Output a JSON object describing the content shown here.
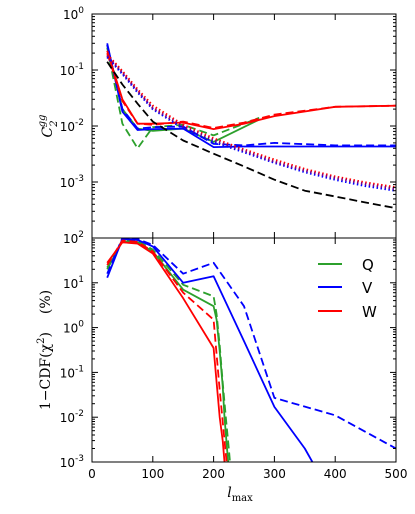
{
  "chart_data": [
    {
      "type": "line",
      "ylabel_main": "C",
      "ylabel_sub": "2",
      "ylabel_sup": "gg",
      "yscale": "log",
      "xlim": [
        0,
        500
      ],
      "ylim": [
        0.0001,
        1
      ],
      "yticks": [
        {
          "value": 1,
          "mant": "10",
          "exp": "0"
        },
        {
          "value": 0.1,
          "mant": "10",
          "exp": "-1"
        },
        {
          "value": 0.01,
          "mant": "10",
          "exp": "-2"
        },
        {
          "value": 0.001,
          "mant": "10",
          "exp": "-3"
        }
      ],
      "series": [
        {
          "key": "q-solid",
          "color": "#2ca02c",
          "dash": "solid",
          "x": [
            25,
            50,
            75,
            100,
            150,
            200,
            275
          ],
          "y": [
            0.28,
            0.02,
            0.009,
            0.0082,
            0.009,
            0.0052,
            0.013
          ]
        },
        {
          "key": "q-dash",
          "color": "#2ca02c",
          "dash": "dashed",
          "x": [
            25,
            50,
            75,
            100,
            150,
            200,
            275
          ],
          "y": [
            0.25,
            0.011,
            0.004,
            0.0095,
            0.0105,
            0.0068,
            0.014
          ]
        },
        {
          "key": "v-solid",
          "color": "#0000ff",
          "dash": "solid",
          "x": [
            25,
            50,
            75,
            100,
            150,
            200,
            250,
            300,
            400,
            500
          ],
          "y": [
            0.3,
            0.018,
            0.0085,
            0.0088,
            0.009,
            0.0042,
            0.0043,
            0.0043,
            0.0043,
            0.0043
          ]
        },
        {
          "key": "v-dash",
          "color": "#0000ff",
          "dash": "dashed",
          "x": [
            25,
            50,
            75,
            100,
            150,
            200,
            250,
            300,
            400,
            500
          ],
          "y": [
            0.28,
            0.02,
            0.009,
            0.0095,
            0.0098,
            0.0048,
            0.0045,
            0.005,
            0.0045,
            0.0045
          ]
        },
        {
          "key": "w-solid",
          "color": "#ff0000",
          "dash": "solid",
          "x": [
            25,
            50,
            75,
            100,
            150,
            200,
            250,
            300,
            400,
            500
          ],
          "y": [
            0.22,
            0.03,
            0.011,
            0.011,
            0.0115,
            0.0088,
            0.011,
            0.015,
            0.022,
            0.023
          ]
        },
        {
          "key": "w-dash",
          "color": "#ff0000",
          "dash": "dashed",
          "x": [
            25,
            50,
            75,
            100,
            150,
            200,
            250,
            300,
            400,
            500
          ],
          "y": [
            0.2,
            0.028,
            0.011,
            0.0105,
            0.012,
            0.0092,
            0.0115,
            0.016,
            0.022,
            0.023
          ]
        },
        {
          "key": "black-dash",
          "color": "#000000",
          "dash": "dashed",
          "x": [
            25,
            50,
            75,
            100,
            150,
            200,
            250,
            300,
            350,
            400,
            450,
            500
          ],
          "y": [
            0.14,
            0.055,
            0.025,
            0.012,
            0.0055,
            0.0032,
            0.0019,
            0.0011,
            0.0007,
            0.00055,
            0.00043,
            0.00034
          ]
        },
        {
          "key": "blue-dot",
          "color": "#0000ff",
          "dash": "dotted",
          "x": [
            25,
            50,
            75,
            100,
            150,
            200,
            250,
            300,
            350,
            400,
            450,
            500
          ],
          "y": [
            0.17,
            0.085,
            0.04,
            0.02,
            0.009,
            0.0052,
            0.0034,
            0.0022,
            0.0015,
            0.0011,
            0.00085,
            0.0007
          ]
        },
        {
          "key": "red-dot",
          "color": "#ff0000",
          "dash": "dotted",
          "x": [
            25,
            50,
            75,
            100,
            150,
            200,
            250,
            300,
            350,
            400,
            450,
            500
          ],
          "y": [
            0.19,
            0.095,
            0.045,
            0.023,
            0.0105,
            0.006,
            0.0038,
            0.0025,
            0.0017,
            0.00125,
            0.00098,
            0.0008
          ]
        },
        {
          "key": "purple-dot",
          "color": "#800080",
          "dash": "dotted",
          "x": [
            25,
            50,
            75,
            100,
            150,
            200,
            250,
            300,
            350,
            400,
            450,
            500
          ],
          "y": [
            0.18,
            0.09,
            0.042,
            0.021,
            0.0098,
            0.0056,
            0.0036,
            0.0023,
            0.0016,
            0.00118,
            0.00092,
            0.00075
          ]
        }
      ]
    },
    {
      "type": "line",
      "ylabel_main": "1−CDF(χ",
      "ylabel_sup": "2",
      "ylabel_close": ")",
      "ylabel_unit": "(%)",
      "xlabel_main": "l",
      "xlabel_sub": "max",
      "yscale": "log",
      "xlim": [
        0,
        500
      ],
      "ylim": [
        0.001,
        100
      ],
      "xticks": [
        {
          "value": 0,
          "label": "0"
        },
        {
          "value": 100,
          "label": "100"
        },
        {
          "value": 200,
          "label": "200"
        },
        {
          "value": 300,
          "label": "300"
        },
        {
          "value": 400,
          "label": "400"
        },
        {
          "value": 500,
          "label": "500"
        }
      ],
      "yticks": [
        {
          "value": 100,
          "mant": "10",
          "exp": "2"
        },
        {
          "value": 10,
          "mant": "10",
          "exp": "1"
        },
        {
          "value": 1,
          "mant": "10",
          "exp": "0"
        },
        {
          "value": 0.1,
          "mant": "10",
          "exp": "-1"
        },
        {
          "value": 0.01,
          "mant": "10",
          "exp": "-2"
        },
        {
          "value": 0.001,
          "mant": "10",
          "exp": "-3"
        }
      ],
      "legend": {
        "location": "upper right",
        "entries": [
          {
            "label": "Q",
            "color": "#2ca02c"
          },
          {
            "label": "V",
            "color": "#0000ff"
          },
          {
            "label": "W",
            "color": "#ff0000"
          }
        ]
      },
      "series": [
        {
          "key": "q-solid",
          "color": "#2ca02c",
          "dash": "solid",
          "x": [
            25,
            50,
            75,
            100,
            150,
            200,
            205,
            210,
            215,
            218,
            222,
            226
          ],
          "y": [
            20,
            85,
            80,
            50,
            7,
            3,
            1.5,
            0.3,
            0.05,
            0.01,
            0.002,
            0.0005
          ]
        },
        {
          "key": "q-dash",
          "color": "#2ca02c",
          "dash": "dashed",
          "x": [
            25,
            50,
            75,
            100,
            150,
            200,
            205,
            210,
            215,
            220,
            225,
            229
          ],
          "y": [
            22,
            90,
            85,
            55,
            9,
            5,
            2,
            0.4,
            0.06,
            0.01,
            0.002,
            0.0005
          ]
        },
        {
          "key": "v-solid",
          "color": "#0000ff",
          "dash": "solid",
          "x": [
            25,
            50,
            75,
            100,
            150,
            200,
            250,
            300,
            350,
            375
          ],
          "y": [
            13,
            95,
            90,
            65,
            10,
            14,
            0.5,
            0.017,
            0.002,
            0.0005
          ]
        },
        {
          "key": "v-dash",
          "color": "#0000ff",
          "dash": "dashed",
          "x": [
            25,
            50,
            75,
            100,
            150,
            200,
            250,
            300,
            400,
            500
          ],
          "y": [
            16,
            100,
            95,
            70,
            16,
            28,
            3,
            0.027,
            0.011,
            0.002
          ]
        },
        {
          "key": "w-solid",
          "color": "#ff0000",
          "dash": "solid",
          "x": [
            25,
            50,
            75,
            100,
            150,
            200,
            205,
            210,
            215,
            218,
            221
          ],
          "y": [
            28,
            80,
            75,
            45,
            4.5,
            0.35,
            0.06,
            0.01,
            0.003,
            0.001,
            0.0004
          ]
        },
        {
          "key": "w-dash",
          "color": "#ff0000",
          "dash": "dashed",
          "x": [
            25,
            50,
            75,
            100,
            150,
            200,
            205,
            210,
            215,
            220,
            224
          ],
          "y": [
            25,
            88,
            82,
            50,
            6,
            1.5,
            0.25,
            0.04,
            0.008,
            0.0015,
            0.0005
          ]
        }
      ]
    }
  ]
}
